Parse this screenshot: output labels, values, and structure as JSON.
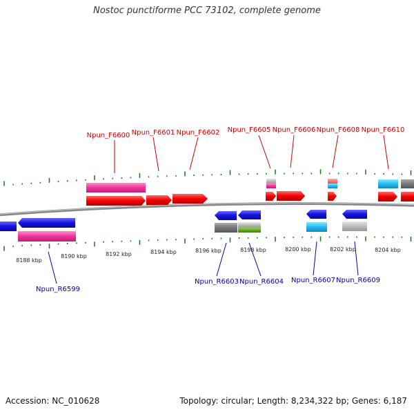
{
  "title": "Nostoc punctiforme PCC 73102, complete genome",
  "footer": {
    "accession": "Accession: NC_010628",
    "summary": "Topology: circular; Length: 8,234,322 bp; Genes: 6,187"
  },
  "colors": {
    "forward_label": "#cc0000",
    "reverse_label": "#0000aa",
    "forward_gene": "#ee0000",
    "reverse_gene": "#1414dd",
    "feature_pink": "#ee3399",
    "feature_cyan": "#22bbee",
    "feature_gray": "#777777",
    "feature_lightgray": "#bbbbbb",
    "feature_green": "#66aa22",
    "feature_salmon": "#ff7777",
    "backbone": "#888888",
    "tick": "#117711"
  },
  "axis": {
    "ticks": [
      "8188 kbp",
      "8190 kbp",
      "8192 kbp",
      "8194 kbp",
      "8196 kbp",
      "8198 kbp",
      "8200 kbp",
      "8202 kbp",
      "8204 kbp"
    ]
  },
  "forward_labels": [
    "Npun_F6600",
    "Npun_F6601",
    "Npun_F6602",
    "Npun_F6605",
    "Npun_F6606",
    "Npun_F6608",
    "Npun_F6610"
  ],
  "reverse_labels": [
    "Npun_R6599",
    "Npun_R6603",
    "Npun_R6604",
    "Npun_R6607",
    "Npun_R6609"
  ]
}
